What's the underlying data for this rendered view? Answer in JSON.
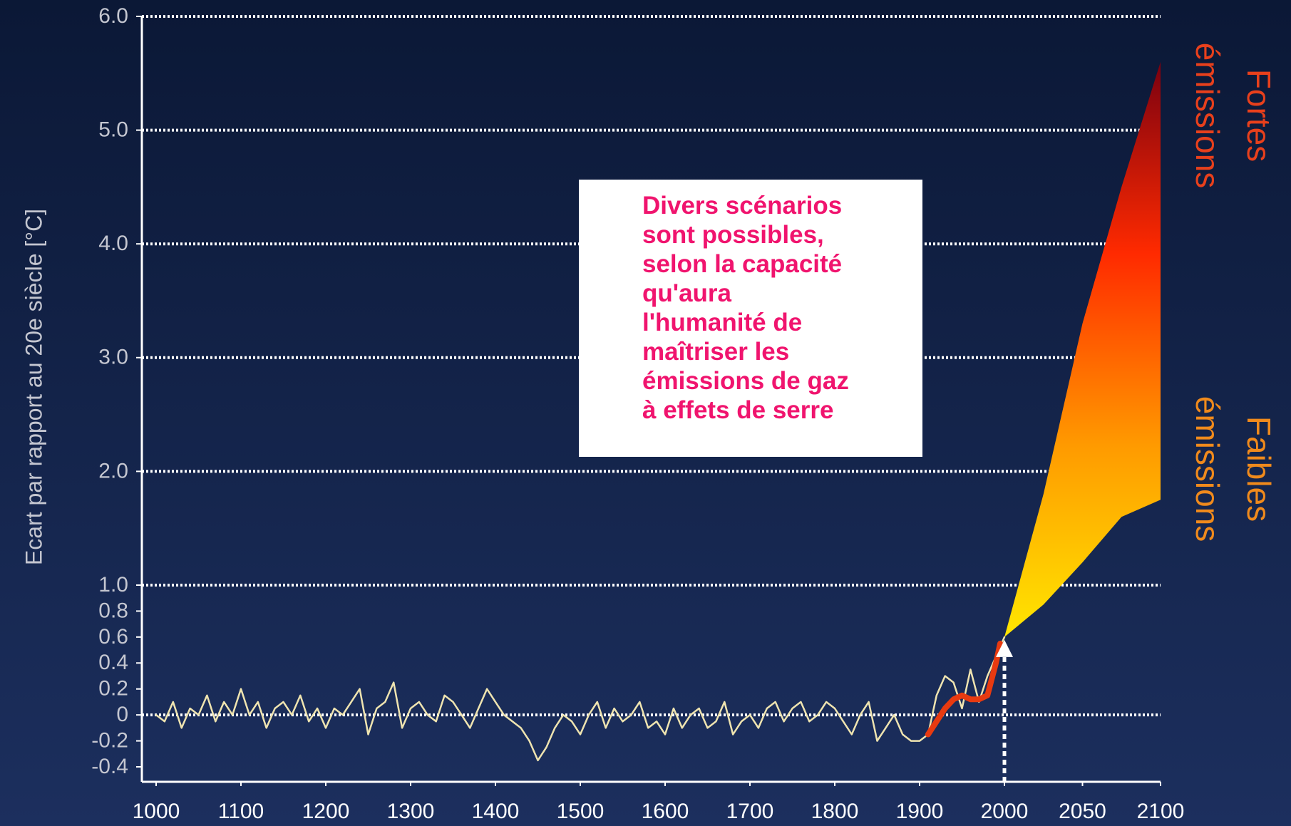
{
  "chart_data": {
    "type": "line",
    "y_label": "Ecart par rapport au 20e siècle [°C]",
    "xlim": [
      1000,
      2100
    ],
    "xticks": [
      1000,
      1100,
      1200,
      1300,
      1400,
      1500,
      1600,
      1700,
      1800,
      1900,
      2000,
      2050,
      2100
    ],
    "ylim": [
      -0.4,
      6
    ],
    "yticks": [
      {
        "value": 6,
        "label": "6.0"
      },
      {
        "value": 5,
        "label": "5.0"
      },
      {
        "value": 4,
        "label": "4.0"
      },
      {
        "value": 3,
        "label": "3.0"
      },
      {
        "value": 2,
        "label": "2.0"
      },
      {
        "value": 1,
        "label": "1.0"
      },
      0.8,
      0.6,
      0.4,
      0.2,
      0,
      -0.2,
      -0.4
    ],
    "grid": true,
    "series": [
      {
        "type": "line",
        "color": "#efe4b0",
        "x": [
          1000,
          1010,
          1020,
          1030,
          1040,
          1050,
          1060,
          1070,
          1080,
          1090,
          1100,
          1110,
          1120,
          1130,
          1140,
          1150,
          1160,
          1170,
          1180,
          1190,
          1200,
          1210,
          1220,
          1230,
          1240,
          1250,
          1260,
          1270,
          1280,
          1290,
          1300,
          1310,
          1320,
          1330,
          1340,
          1350,
          1360,
          1370,
          1380,
          1390,
          1400,
          1410,
          1420,
          1430,
          1440,
          1450,
          1460,
          1470,
          1480,
          1490,
          1500,
          1510,
          1520,
          1530,
          1540,
          1550,
          1560,
          1570,
          1580,
          1590,
          1600,
          1610,
          1620,
          1630,
          1640,
          1650,
          1660,
          1670,
          1680,
          1690,
          1700,
          1710,
          1720,
          1730,
          1740,
          1750,
          1760,
          1770,
          1780,
          1790,
          1800,
          1810,
          1820,
          1830,
          1840,
          1850,
          1860,
          1870,
          1880,
          1890,
          1900,
          1910,
          1920,
          1930,
          1940,
          1950,
          1960,
          1970,
          1980,
          1990,
          2000
        ],
        "values": [
          0.0,
          -0.05,
          0.1,
          -0.1,
          0.05,
          0.0,
          0.15,
          -0.05,
          0.1,
          0.0,
          0.2,
          0.0,
          0.1,
          -0.1,
          0.05,
          0.1,
          0.0,
          0.15,
          -0.05,
          0.05,
          -0.1,
          0.05,
          0.0,
          0.1,
          0.2,
          -0.15,
          0.05,
          0.1,
          0.25,
          -0.1,
          0.05,
          0.1,
          0.0,
          -0.05,
          0.15,
          0.1,
          0.0,
          -0.1,
          0.05,
          0.2,
          0.1,
          0.0,
          -0.05,
          -0.1,
          -0.2,
          -0.35,
          -0.25,
          -0.1,
          0.0,
          -0.05,
          -0.15,
          0.0,
          0.1,
          -0.1,
          0.05,
          -0.05,
          0.0,
          0.1,
          -0.1,
          -0.05,
          -0.15,
          0.05,
          -0.1,
          0.0,
          0.05,
          -0.1,
          -0.05,
          0.1,
          -0.15,
          -0.05,
          0.0,
          -0.1,
          0.05,
          0.1,
          -0.05,
          0.05,
          0.1,
          -0.05,
          0.0,
          0.1,
          0.05,
          -0.05,
          -0.15,
          0.0,
          0.1,
          -0.2,
          -0.1,
          0.0,
          -0.15,
          -0.2,
          -0.2,
          -0.15,
          0.15,
          0.3,
          0.25,
          0.05,
          0.35,
          0.1,
          0.3,
          0.45,
          0.6
        ]
      },
      {
        "type": "line",
        "color": "#e83a10",
        "x": [
          1910,
          1920,
          1930,
          1940,
          1950,
          1960,
          1970,
          1980,
          1990,
          1995
        ],
        "values": [
          -0.15,
          -0.05,
          0.05,
          0.12,
          0.15,
          0.12,
          0.12,
          0.15,
          0.4,
          0.55
        ]
      },
      {
        "type": "band",
        "colors": [
          "#ffe600",
          "#ff9a00",
          "#ff2a00",
          "#7a0010"
        ],
        "x": [
          2000,
          2025,
          2050,
          2075,
          2100
        ],
        "upper": [
          0.6,
          1.8,
          3.3,
          4.5,
          5.6
        ],
        "lower": [
          0.6,
          0.85,
          1.2,
          1.6,
          1.75
        ]
      }
    ],
    "annotation": [
      "Divers scénarios",
      "sont possibles,",
      "selon la capacité",
      "qu'aura",
      "l'humanité de",
      "maîtriser les",
      "émissions de gaz",
      "à effets de serre"
    ],
    "annotation_color": "#f0146e",
    "scenario_labels": [
      {
        "lines": [
          "Fortes",
          "émissions"
        ],
        "color": "#e8401c"
      },
      {
        "lines": [
          "Faibles",
          "émissions"
        ],
        "color": "#f08a1c"
      }
    ]
  }
}
